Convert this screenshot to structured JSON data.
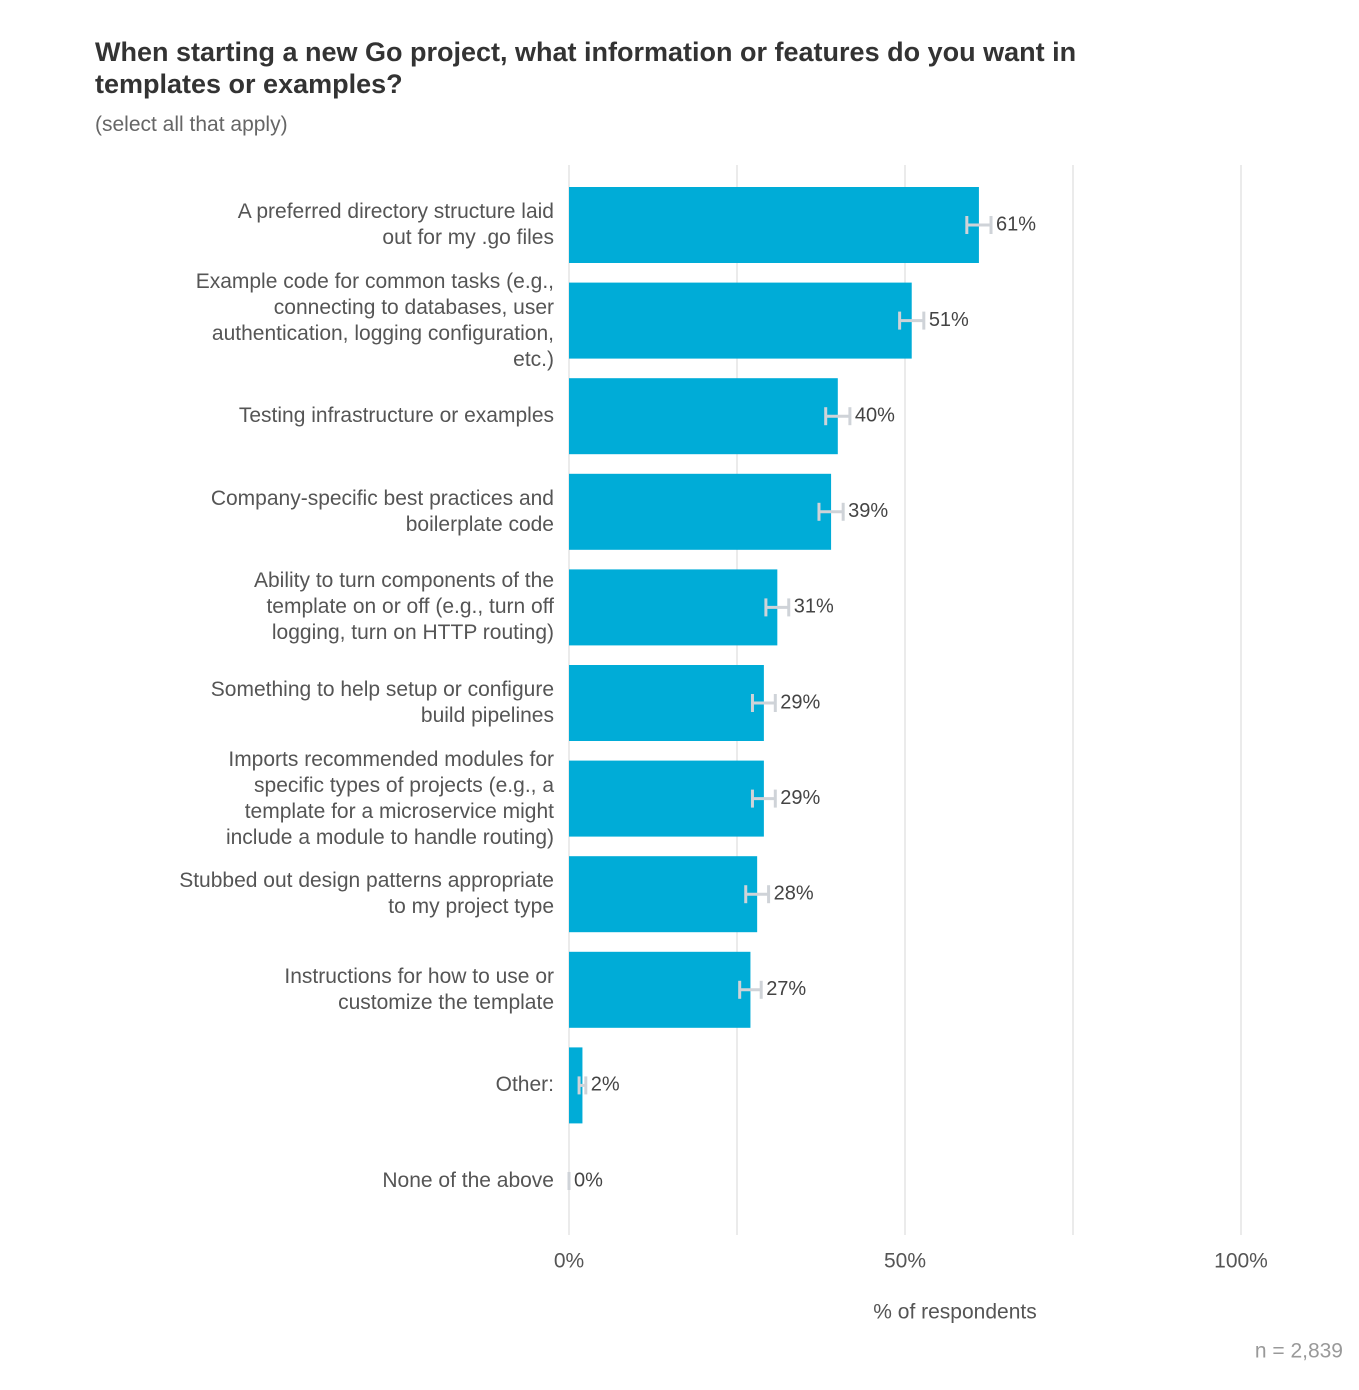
{
  "chart_data": {
    "type": "bar",
    "orientation": "horizontal",
    "title": "When starting a new Go project, what information or features do you want in\ntemplates or examples?",
    "subtitle": "(select all that apply)",
    "categories": [
      "A preferred directory structure laid\nout for my .go files",
      "Example code for common tasks (e.g.,\nconnecting to databases, user\nauthentication, logging configuration,\netc.)",
      "Testing infrastructure or examples",
      "Company-specific best practices and\nboilerplate code",
      "Ability to turn components of the\ntemplate on or off (e.g., turn off\nlogging, turn on HTTP routing)",
      "Something to help setup or configure\nbuild pipelines",
      "Imports recommended modules for\nspecific types of projects (e.g., a\ntemplate for a microservice might\ninclude a module to handle routing)",
      "Stubbed out design patterns appropriate\nto my project type",
      "Instructions for how to use or\ncustomize the template",
      "Other:",
      "None of the above"
    ],
    "values": [
      61,
      51,
      40,
      39,
      31,
      29,
      29,
      28,
      27,
      2,
      0
    ],
    "value_labels": [
      "61%",
      "51%",
      "40%",
      "39%",
      "31%",
      "29%",
      "29%",
      "28%",
      "27%",
      "2%",
      "0%"
    ],
    "errors": [
      1.8,
      1.8,
      1.8,
      1.8,
      1.7,
      1.7,
      1.7,
      1.7,
      1.6,
      0.5,
      0
    ],
    "color": "#00acd7",
    "error_color": "#cfd3d8",
    "xlim": [
      0,
      100
    ],
    "xticks": [
      {
        "value": 0,
        "label": "0%"
      },
      {
        "value": 50,
        "label": "50%"
      },
      {
        "value": 100,
        "label": "100%"
      }
    ],
    "minor_xticks": [
      25,
      75
    ],
    "grid": true,
    "xlabel": "% of respondents",
    "note": "n =  2,839"
  }
}
